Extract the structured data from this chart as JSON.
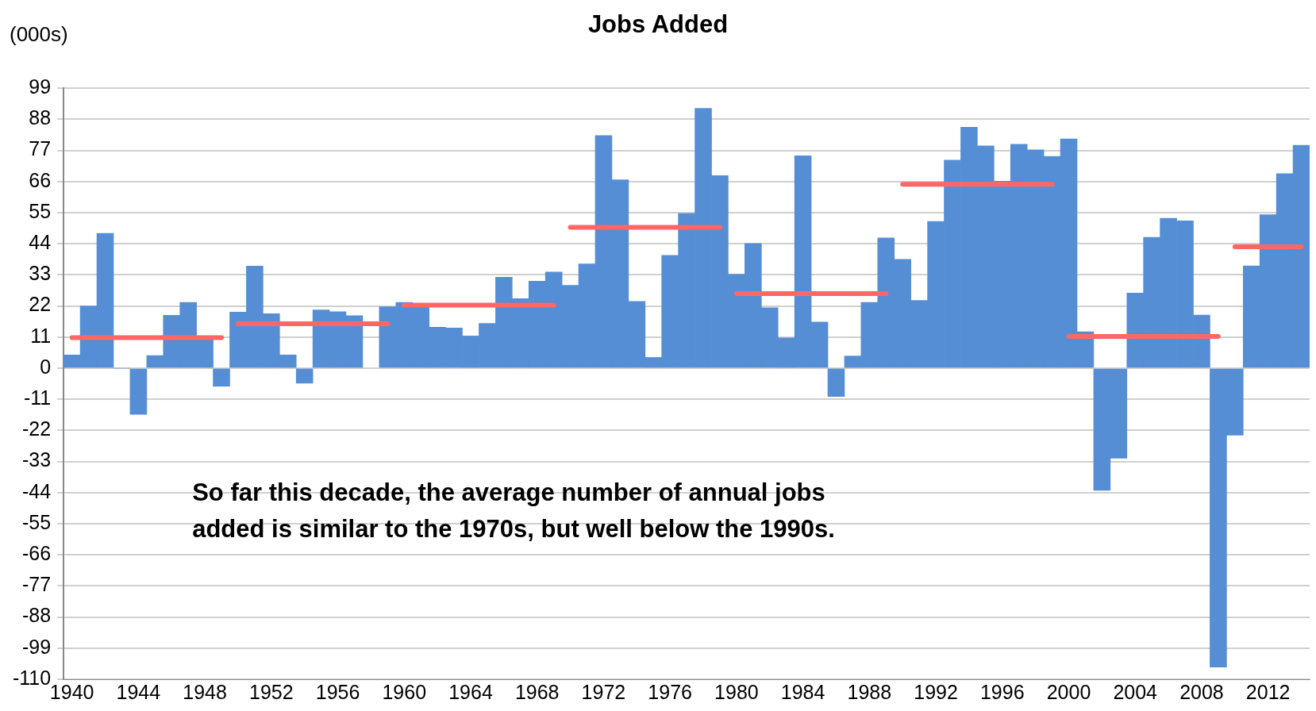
{
  "chart_data": {
    "type": "bar",
    "title": "Jobs Added",
    "ylabel": "(000s)",
    "x": [
      1940,
      1941,
      1942,
      1943,
      1944,
      1945,
      1946,
      1947,
      1948,
      1949,
      1950,
      1951,
      1952,
      1953,
      1954,
      1955,
      1956,
      1957,
      1958,
      1959,
      1960,
      1961,
      1962,
      1963,
      1964,
      1965,
      1966,
      1967,
      1968,
      1969,
      1970,
      1971,
      1972,
      1973,
      1974,
      1975,
      1976,
      1977,
      1978,
      1979,
      1980,
      1981,
      1982,
      1983,
      1984,
      1985,
      1986,
      1987,
      1988,
      1989,
      1990,
      1991,
      1992,
      1993,
      1994,
      1995,
      1996,
      1997,
      1998,
      1999,
      2000,
      2001,
      2002,
      2003,
      2004,
      2005,
      2006,
      2007,
      2008,
      2009,
      2010,
      2011,
      2012,
      2013,
      2014
    ],
    "series": [
      {
        "color": "#558ed5",
        "values": [
          4.7,
          22,
          47.7,
          0,
          -16.3,
          4.5,
          18.7,
          23.3,
          10.5,
          -6.4,
          19.8,
          36.1,
          19.3,
          4.7,
          -5.3,
          20.6,
          20,
          18.6,
          null,
          21.7,
          23.3,
          22,
          14.5,
          14.2,
          11.4,
          15.8,
          32.2,
          24.6,
          30.8,
          34,
          29.3,
          36.9,
          82.3,
          66.6,
          23.6,
          3.8,
          39.9,
          54.7,
          91.9,
          68.1,
          33.2,
          44.1,
          21.4,
          10.7,
          75.1,
          16.3,
          -10,
          4.3,
          23.3,
          46.1,
          38.5,
          24,
          51.9,
          73.6,
          85.2,
          78.6,
          66.1,
          79.2,
          77.2,
          74.9,
          81.1,
          12.9,
          -43.2,
          -31.8,
          26.6,
          46.3,
          53,
          52.1,
          18.8,
          -105.7,
          -23.7,
          36.2,
          54.3,
          68.8,
          78.8
        ]
      },
      {
        "type": "line",
        "color": "#ff6666",
        "x": [
          1940,
          1949
        ],
        "values": [
          10.8,
          10.8
        ]
      },
      {
        "type": "line",
        "color": "#ff6666",
        "x": [
          1950,
          1959
        ],
        "values": [
          15.7,
          15.7
        ]
      },
      {
        "type": "line",
        "color": "#ff6666",
        "x": [
          1960,
          1969
        ],
        "values": [
          22.3,
          22.3
        ]
      },
      {
        "type": "line",
        "color": "#ff6666",
        "x": [
          1970,
          1979
        ],
        "values": [
          49.8,
          49.8
        ]
      },
      {
        "type": "line",
        "color": "#ff6666",
        "x": [
          1980,
          1989
        ],
        "values": [
          26.4,
          26.4
        ]
      },
      {
        "type": "line",
        "color": "#ff6666",
        "x": [
          1990,
          1999
        ],
        "values": [
          65,
          65
        ]
      },
      {
        "type": "line",
        "color": "#ff6666",
        "x": [
          2000,
          2009
        ],
        "values": [
          11.2,
          11.2
        ]
      },
      {
        "type": "line",
        "color": "#ff6666",
        "x": [
          2010,
          2014
        ],
        "values": [
          42.9,
          42.9
        ]
      }
    ],
    "xlim": [
      1939.5,
      2014.5
    ],
    "xticks": [
      1940,
      1944,
      1948,
      1952,
      1956,
      1960,
      1964,
      1968,
      1972,
      1976,
      1980,
      1984,
      1988,
      1992,
      1996,
      2000,
      2004,
      2008,
      2012
    ],
    "ylim": [
      -110,
      99
    ],
    "yticks": [
      -110,
      -99,
      -88,
      -77,
      -66,
      -55,
      -44,
      -33,
      -22,
      -11,
      0,
      11,
      22,
      33,
      44,
      55,
      66,
      77,
      88,
      99
    ],
    "grid": "y",
    "marker": "none",
    "line_style": "solid",
    "annotations": [
      "So far this decade, the average number of annual jobs added is similar to the 1970s, but well below the 1990s."
    ]
  }
}
